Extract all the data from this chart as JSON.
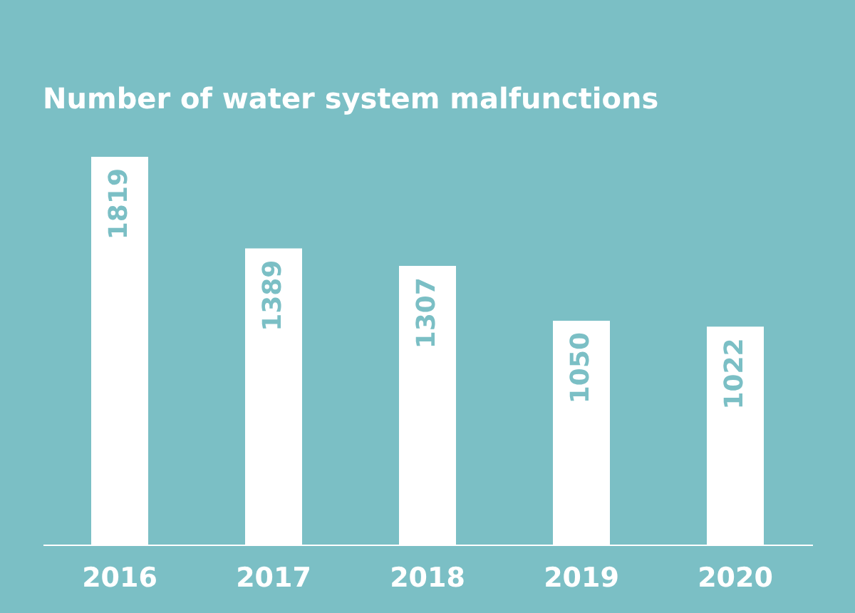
{
  "chart_data": {
    "type": "bar",
    "title": "Number of water system malfunctions",
    "categories": [
      "2016",
      "2017",
      "2018",
      "2019",
      "2020"
    ],
    "values": [
      1819,
      1389,
      1307,
      1050,
      1022
    ],
    "color": "#ffffff",
    "data_labels": true
  }
}
